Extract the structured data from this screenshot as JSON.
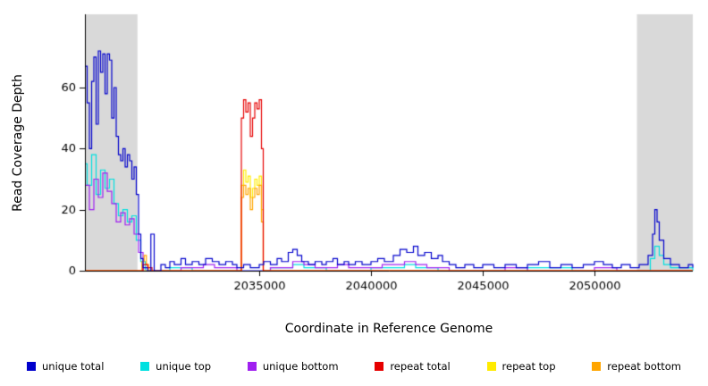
{
  "chart_data": {
    "type": "line",
    "line_style": "step",
    "title": "",
    "xlabel": "Coordinate in Reference Genome",
    "ylabel": "Read Coverage Depth",
    "xlim": [
      2027200,
      2054400
    ],
    "ylim": [
      0,
      84
    ],
    "x_ticks": [
      2035000,
      2040000,
      2045000,
      2050000
    ],
    "x_tick_labels": [
      "2035000",
      "2040000",
      "2045000",
      "2050000"
    ],
    "y_ticks": [
      0,
      20,
      40,
      60
    ],
    "y_tick_labels": [
      "0",
      "20",
      "40",
      "60"
    ],
    "grid": false,
    "background_band_color": "#d9d9d9",
    "background_bands": [
      {
        "x0": 2027200,
        "x1": 2029550
      },
      {
        "x0": 2051900,
        "x1": 2054400
      }
    ],
    "legend": {
      "position": "bottom",
      "entries": [
        {
          "label": "unique total",
          "color": "#0000CC"
        },
        {
          "label": "unique top",
          "color": "#00E0E0"
        },
        {
          "label": "unique bottom",
          "color": "#A020F0"
        },
        {
          "label": "repeat total",
          "color": "#E60000"
        },
        {
          "label": "repeat top",
          "color": "#FFEB00"
        },
        {
          "label": "repeat bottom",
          "color": "#FFA500"
        }
      ]
    },
    "series": [
      {
        "name": "unique top",
        "color": "#00E0E0",
        "points": [
          [
            2027200,
            35
          ],
          [
            2027300,
            28
          ],
          [
            2027500,
            38
          ],
          [
            2027700,
            25
          ],
          [
            2027900,
            33
          ],
          [
            2028100,
            27
          ],
          [
            2028300,
            30
          ],
          [
            2028500,
            22
          ],
          [
            2028700,
            18
          ],
          [
            2028900,
            20
          ],
          [
            2029100,
            16
          ],
          [
            2029300,
            18
          ],
          [
            2029500,
            10
          ],
          [
            2029700,
            3
          ],
          [
            2029900,
            0
          ],
          [
            2031000,
            1
          ],
          [
            2032000,
            0
          ],
          [
            2035500,
            1
          ],
          [
            2036500,
            2
          ],
          [
            2037000,
            1
          ],
          [
            2038000,
            0
          ],
          [
            2040000,
            1
          ],
          [
            2041500,
            2
          ],
          [
            2042000,
            1
          ],
          [
            2043000,
            0
          ],
          [
            2047000,
            1
          ],
          [
            2049000,
            0
          ],
          [
            2052500,
            4
          ],
          [
            2052700,
            8
          ],
          [
            2052900,
            5
          ],
          [
            2053100,
            2
          ],
          [
            2053400,
            1
          ],
          [
            2054400,
            0
          ]
        ]
      },
      {
        "name": "unique bottom",
        "color": "#A020F0",
        "points": [
          [
            2027200,
            28
          ],
          [
            2027400,
            20
          ],
          [
            2027600,
            30
          ],
          [
            2027800,
            24
          ],
          [
            2028000,
            32
          ],
          [
            2028200,
            26
          ],
          [
            2028400,
            22
          ],
          [
            2028600,
            16
          ],
          [
            2028800,
            19
          ],
          [
            2029000,
            15
          ],
          [
            2029200,
            17
          ],
          [
            2029400,
            12
          ],
          [
            2029600,
            6
          ],
          [
            2029800,
            0
          ],
          [
            2031500,
            1
          ],
          [
            2032500,
            2
          ],
          [
            2033000,
            1
          ],
          [
            2034000,
            0
          ],
          [
            2035500,
            1
          ],
          [
            2036500,
            3
          ],
          [
            2037000,
            2
          ],
          [
            2037500,
            1
          ],
          [
            2038500,
            2
          ],
          [
            2039000,
            1
          ],
          [
            2040500,
            2
          ],
          [
            2041500,
            3
          ],
          [
            2042000,
            2
          ],
          [
            2042500,
            1
          ],
          [
            2043500,
            0
          ],
          [
            2046000,
            1
          ],
          [
            2047000,
            0
          ],
          [
            2050000,
            1
          ],
          [
            2051000,
            0
          ],
          [
            2054400,
            0
          ]
        ]
      },
      {
        "name": "repeat top",
        "color": "#FFEB00",
        "points": [
          [
            2027200,
            0
          ],
          [
            2034200,
            28
          ],
          [
            2034300,
            33
          ],
          [
            2034400,
            29
          ],
          [
            2034500,
            31
          ],
          [
            2034600,
            24
          ],
          [
            2034700,
            27
          ],
          [
            2034800,
            30
          ],
          [
            2034900,
            28
          ],
          [
            2035000,
            31
          ],
          [
            2035100,
            20
          ],
          [
            2035180,
            0
          ],
          [
            2054400,
            0
          ]
        ]
      },
      {
        "name": "repeat bottom",
        "color": "#FFA500",
        "points": [
          [
            2027200,
            0
          ],
          [
            2029750,
            3
          ],
          [
            2029850,
            5
          ],
          [
            2029950,
            2
          ],
          [
            2030050,
            0
          ],
          [
            2034200,
            24
          ],
          [
            2034300,
            28
          ],
          [
            2034400,
            25
          ],
          [
            2034500,
            27
          ],
          [
            2034600,
            20
          ],
          [
            2034700,
            24
          ],
          [
            2034800,
            27
          ],
          [
            2034900,
            25
          ],
          [
            2035000,
            28
          ],
          [
            2035100,
            16
          ],
          [
            2035180,
            0
          ],
          [
            2054400,
            0
          ]
        ]
      },
      {
        "name": "repeat total",
        "color": "#E60000",
        "points": [
          [
            2027200,
            0
          ],
          [
            2029800,
            2
          ],
          [
            2030000,
            1
          ],
          [
            2030200,
            0
          ],
          [
            2034150,
            0
          ],
          [
            2034200,
            50
          ],
          [
            2034300,
            56
          ],
          [
            2034400,
            52
          ],
          [
            2034500,
            55
          ],
          [
            2034600,
            44
          ],
          [
            2034700,
            50
          ],
          [
            2034800,
            55
          ],
          [
            2034900,
            53
          ],
          [
            2035000,
            56
          ],
          [
            2035100,
            40
          ],
          [
            2035180,
            0
          ],
          [
            2054400,
            0
          ]
        ]
      },
      {
        "name": "unique total",
        "color": "#0000CC",
        "points": [
          [
            2027200,
            67
          ],
          [
            2027300,
            55
          ],
          [
            2027400,
            40
          ],
          [
            2027500,
            62
          ],
          [
            2027600,
            70
          ],
          [
            2027700,
            48
          ],
          [
            2027800,
            72
          ],
          [
            2027900,
            65
          ],
          [
            2028000,
            71
          ],
          [
            2028100,
            58
          ],
          [
            2028200,
            71
          ],
          [
            2028300,
            69
          ],
          [
            2028400,
            50
          ],
          [
            2028500,
            60
          ],
          [
            2028600,
            44
          ],
          [
            2028700,
            38
          ],
          [
            2028800,
            36
          ],
          [
            2028900,
            40
          ],
          [
            2029000,
            34
          ],
          [
            2029100,
            38
          ],
          [
            2029200,
            36
          ],
          [
            2029300,
            30
          ],
          [
            2029400,
            34
          ],
          [
            2029500,
            25
          ],
          [
            2029600,
            12
          ],
          [
            2029700,
            4
          ],
          [
            2029800,
            1
          ],
          [
            2030000,
            0
          ],
          [
            2030150,
            12
          ],
          [
            2030300,
            0
          ],
          [
            2030600,
            2
          ],
          [
            2030800,
            1
          ],
          [
            2031000,
            3
          ],
          [
            2031200,
            2
          ],
          [
            2031500,
            4
          ],
          [
            2031700,
            2
          ],
          [
            2032000,
            3
          ],
          [
            2032300,
            2
          ],
          [
            2032600,
            4
          ],
          [
            2032900,
            3
          ],
          [
            2033200,
            2
          ],
          [
            2033500,
            3
          ],
          [
            2033800,
            2
          ],
          [
            2034000,
            1
          ],
          [
            2034300,
            2
          ],
          [
            2034600,
            1
          ],
          [
            2035000,
            2
          ],
          [
            2035200,
            3
          ],
          [
            2035500,
            2
          ],
          [
            2035800,
            4
          ],
          [
            2036000,
            3
          ],
          [
            2036300,
            6
          ],
          [
            2036500,
            7
          ],
          [
            2036700,
            5
          ],
          [
            2036900,
            3
          ],
          [
            2037200,
            2
          ],
          [
            2037500,
            3
          ],
          [
            2037800,
            2
          ],
          [
            2038000,
            3
          ],
          [
            2038300,
            4
          ],
          [
            2038500,
            2
          ],
          [
            2038800,
            3
          ],
          [
            2039000,
            2
          ],
          [
            2039300,
            3
          ],
          [
            2039600,
            2
          ],
          [
            2040000,
            3
          ],
          [
            2040300,
            4
          ],
          [
            2040600,
            3
          ],
          [
            2041000,
            5
          ],
          [
            2041300,
            7
          ],
          [
            2041600,
            6
          ],
          [
            2041900,
            8
          ],
          [
            2042100,
            5
          ],
          [
            2042400,
            6
          ],
          [
            2042700,
            4
          ],
          [
            2043000,
            5
          ],
          [
            2043200,
            3
          ],
          [
            2043500,
            2
          ],
          [
            2043800,
            1
          ],
          [
            2044200,
            2
          ],
          [
            2044600,
            1
          ],
          [
            2045000,
            2
          ],
          [
            2045500,
            1
          ],
          [
            2046000,
            2
          ],
          [
            2046500,
            1
          ],
          [
            2047000,
            2
          ],
          [
            2047500,
            3
          ],
          [
            2048000,
            1
          ],
          [
            2048500,
            2
          ],
          [
            2049000,
            1
          ],
          [
            2049500,
            2
          ],
          [
            2050000,
            3
          ],
          [
            2050400,
            2
          ],
          [
            2050800,
            1
          ],
          [
            2051200,
            2
          ],
          [
            2051600,
            1
          ],
          [
            2052000,
            2
          ],
          [
            2052400,
            5
          ],
          [
            2052600,
            12
          ],
          [
            2052700,
            20
          ],
          [
            2052800,
            16
          ],
          [
            2052900,
            10
          ],
          [
            2053100,
            4
          ],
          [
            2053400,
            2
          ],
          [
            2053800,
            1
          ],
          [
            2054200,
            2
          ],
          [
            2054400,
            1
          ]
        ]
      }
    ]
  }
}
